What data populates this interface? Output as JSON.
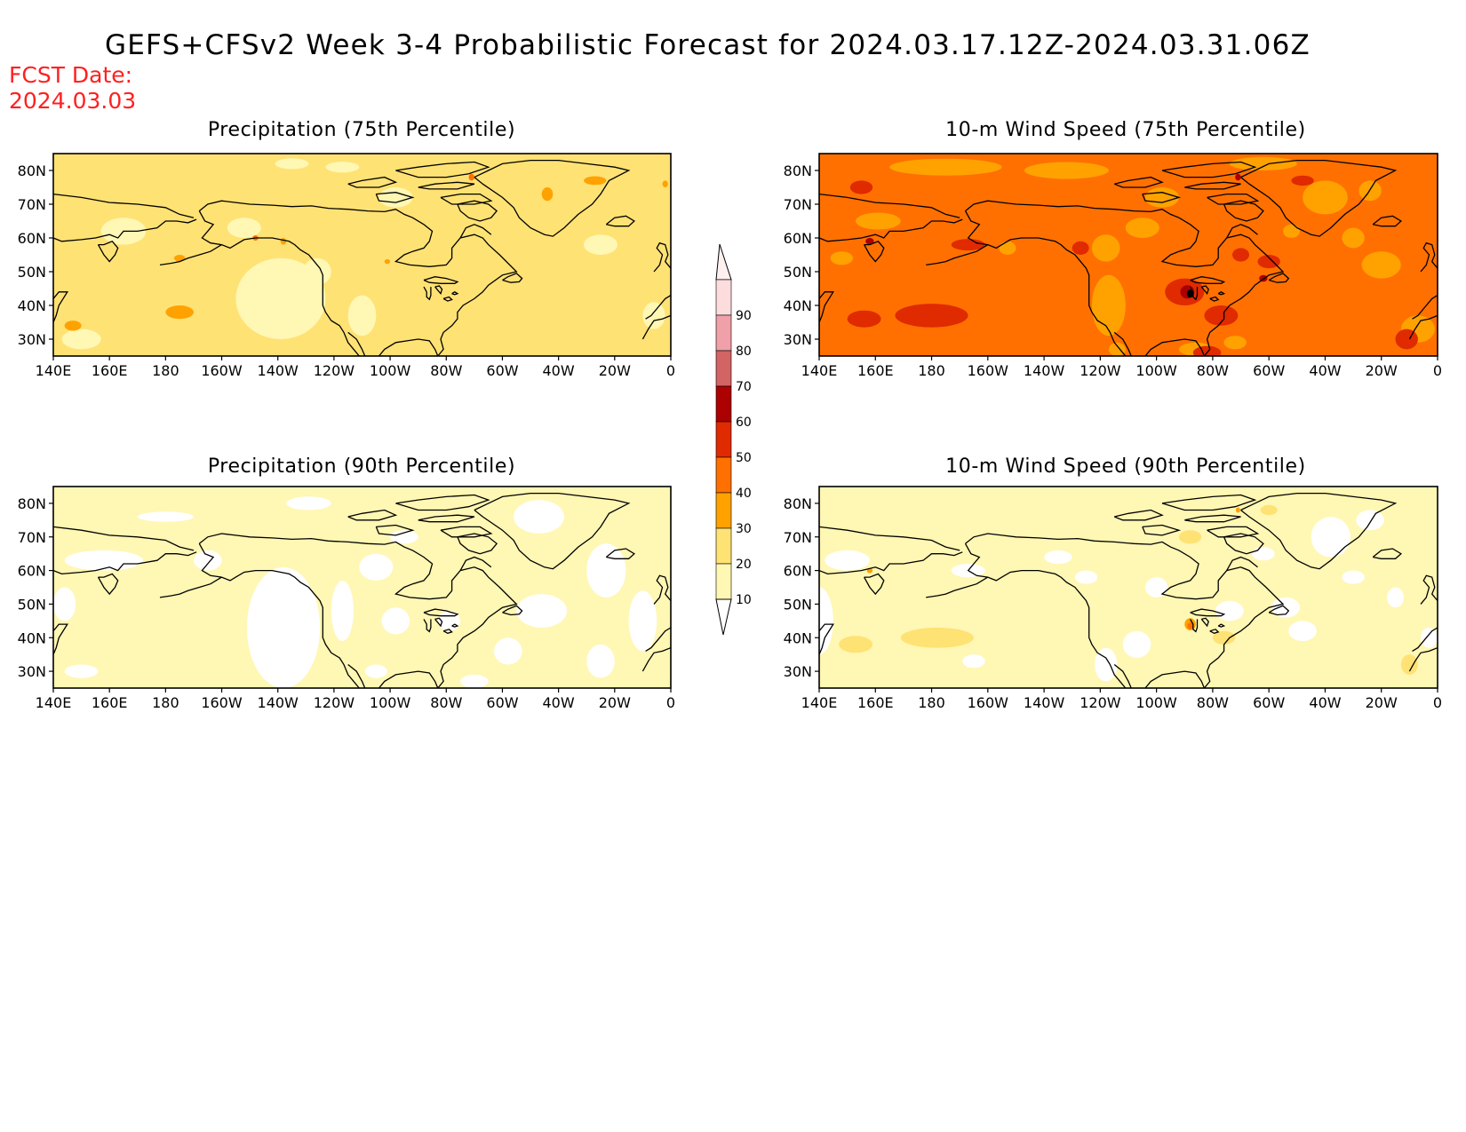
{
  "main_title": "GEFS+CFSv2 Week 3-4 Probabilistic Forecast for 2024.03.17.12Z-2024.03.31.06Z",
  "fcst_label": "FCST Date:",
  "fcst_date": "2024.03.03",
  "colors": {
    "c10": "#fff7b4",
    "c20": "#ffe274",
    "c30": "#ffa200",
    "c40": "#ff7000",
    "c50": "#e02a00",
    "c60": "#ad0000",
    "c70": "#d26464",
    "c80": "#f0a0a8",
    "c90": "#fcdcdc",
    "coast": "#000000",
    "fcst_text": "#ff2020"
  },
  "colorbar": {
    "levels": [
      "10",
      "20",
      "30",
      "40",
      "50",
      "60",
      "70",
      "80",
      "90"
    ]
  },
  "x_ticks": [
    "140E",
    "160E",
    "180",
    "160W",
    "140W",
    "120W",
    "100W",
    "80W",
    "60W",
    "40W",
    "20W",
    "0"
  ],
  "y_ticks": [
    "80N",
    "70N",
    "60N",
    "50N",
    "40N",
    "30N"
  ],
  "panels": [
    {
      "id": "precip75",
      "title": "Precipitation (75th Percentile)",
      "base_level": "20"
    },
    {
      "id": "wind75",
      "title": "10-m Wind Speed (75th Percentile)",
      "base_level": "40"
    },
    {
      "id": "precip90",
      "title": "Precipitation (90th Percentile)",
      "base_level": "10"
    },
    {
      "id": "wind90",
      "title": "10-m Wind Speed (90th Percentile)",
      "base_level": "10"
    }
  ]
}
